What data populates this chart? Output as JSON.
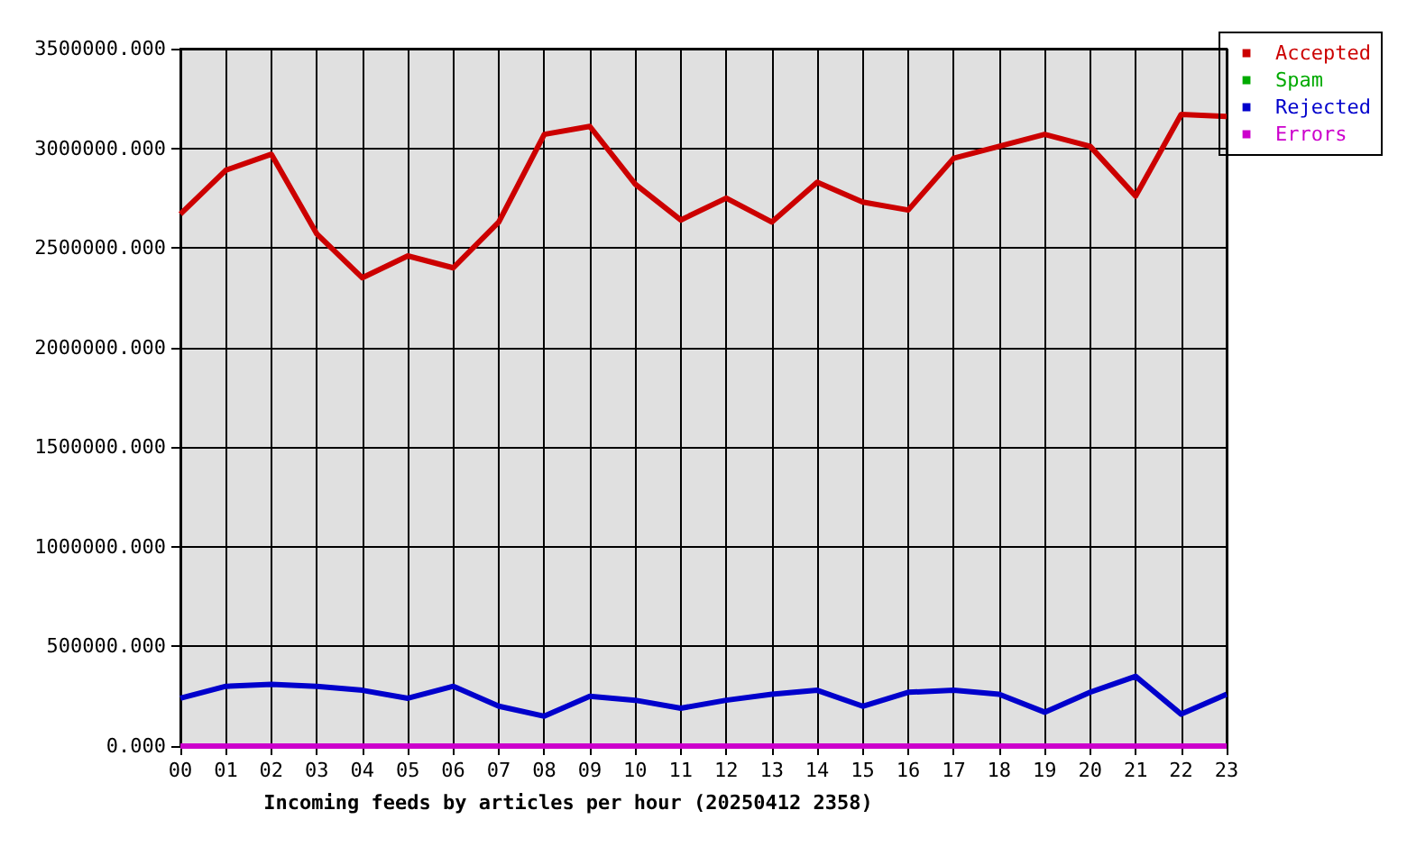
{
  "chart_data": {
    "type": "line",
    "xlabel": "Incoming feeds by articles per hour (20250412 2358)",
    "categories": [
      "00",
      "01",
      "02",
      "03",
      "04",
      "05",
      "06",
      "07",
      "08",
      "09",
      "10",
      "11",
      "12",
      "13",
      "14",
      "15",
      "16",
      "17",
      "18",
      "19",
      "20",
      "21",
      "22",
      "23"
    ],
    "series": [
      {
        "name": "Accepted",
        "color": "#cc0000",
        "values": [
          2670000,
          2890000,
          2970000,
          2570000,
          2350000,
          2460000,
          2400000,
          2630000,
          3070000,
          3110000,
          2820000,
          2640000,
          2750000,
          2630000,
          2830000,
          2730000,
          2690000,
          2950000,
          3010000,
          3070000,
          3010000,
          2760000,
          3170000,
          3160000
        ]
      },
      {
        "name": "Spam",
        "color": "#00aa00",
        "values": [
          null,
          null,
          null,
          null,
          null,
          null,
          null,
          null,
          null,
          null,
          null,
          null,
          null,
          null,
          null,
          null,
          null,
          null,
          null,
          null,
          null,
          null,
          null,
          null
        ]
      },
      {
        "name": "Rejected",
        "color": "#0000cc",
        "values": [
          240000,
          300000,
          310000,
          300000,
          280000,
          240000,
          300000,
          200000,
          150000,
          250000,
          230000,
          190000,
          230000,
          260000,
          280000,
          200000,
          270000,
          280000,
          260000,
          170000,
          270000,
          350000,
          160000,
          260000
        ]
      },
      {
        "name": "Errors",
        "color": "#cc00cc",
        "values": [
          0,
          0,
          0,
          0,
          0,
          0,
          0,
          0,
          0,
          0,
          0,
          0,
          0,
          0,
          0,
          0,
          0,
          0,
          0,
          0,
          0,
          0,
          0,
          0
        ]
      }
    ],
    "ylim": [
      0,
      3500000
    ],
    "yticks": [
      {
        "value": 0,
        "label": "0.000"
      },
      {
        "value": 500000,
        "label": "500000.000"
      },
      {
        "value": 1000000,
        "label": "1000000.000"
      },
      {
        "value": 1500000,
        "label": "1500000.000"
      },
      {
        "value": 2000000,
        "label": "2000000.000"
      },
      {
        "value": 2500000,
        "label": "2500000.000"
      },
      {
        "value": 3000000,
        "label": "3000000.000"
      },
      {
        "value": 3500000,
        "label": "3500000.000"
      }
    ],
    "grid": true,
    "legend": "top right"
  }
}
